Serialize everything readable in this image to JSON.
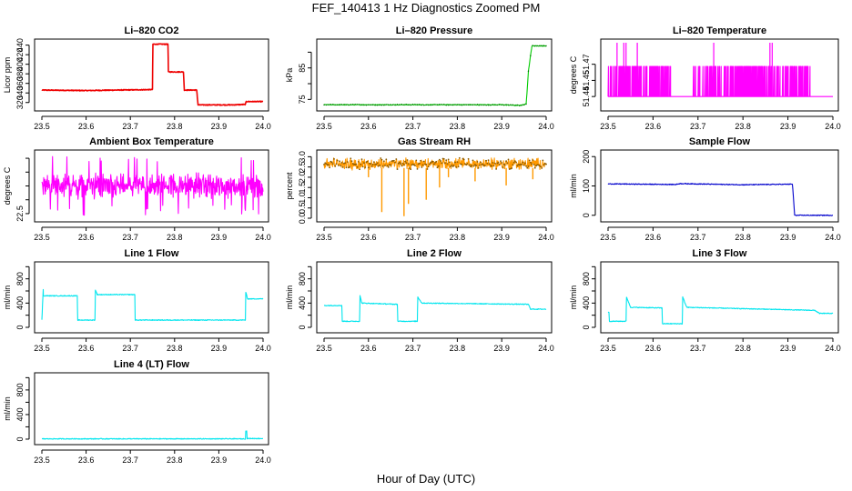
{
  "figure": {
    "title": "FEF_140413  1 Hz Diagnostics Zoomed PM",
    "xlabel": "Hour of Day (UTC)"
  },
  "chart_data": [
    {
      "id": "co2",
      "type": "line",
      "title": "Li–820 CO2",
      "ylabel": "Licor ppm",
      "color": "#ee0000",
      "xlim": [
        23.5,
        24.0
      ],
      "ylim": [
        310,
        445
      ],
      "xticks": [
        23.5,
        23.6,
        23.7,
        23.8,
        23.9,
        24.0
      ],
      "xtick_labels": [
        "23.5",
        "23.6",
        "23.7",
        "23.8",
        "23.9",
        "24.0"
      ],
      "yticks": [
        320,
        340,
        360,
        380,
        400,
        420,
        440
      ],
      "ytick_labels": [
        "320",
        "340",
        "360",
        "380",
        "400",
        "420",
        "440"
      ],
      "series": [
        {
          "name": "CO2",
          "x": [
            23.5,
            23.6,
            23.67,
            23.75,
            23.751,
            23.785,
            23.786,
            23.82,
            23.822,
            23.85,
            23.853,
            23.93,
            23.96,
            23.962,
            24.0
          ],
          "y": [
            346,
            345,
            346,
            347,
            442,
            442,
            384,
            384,
            346,
            346,
            315,
            315,
            316,
            322,
            322
          ]
        }
      ]
    },
    {
      "id": "pressure",
      "type": "line",
      "title": "Li–820 Pressure",
      "ylabel": "kPa",
      "color": "#00cc00",
      "xlim": [
        23.5,
        24.0
      ],
      "ylim": [
        72.5,
        93
      ],
      "xticks": [
        23.5,
        23.6,
        23.7,
        23.8,
        23.9,
        24.0
      ],
      "xtick_labels": [
        "23.5",
        "23.6",
        "23.7",
        "23.8",
        "23.9",
        "24.0"
      ],
      "yticks": [
        75,
        80,
        85,
        90
      ],
      "ytick_labels": [
        "75",
        "",
        "85",
        ""
      ],
      "series": [
        {
          "name": "Pressure",
          "x": [
            23.5,
            23.9,
            23.94,
            23.955,
            23.96,
            23.968,
            24.0
          ],
          "y": [
            73.3,
            73.3,
            73.1,
            73.5,
            84,
            92,
            92
          ]
        }
      ]
    },
    {
      "id": "li_temp",
      "type": "line",
      "title": "Li–820 Temperature",
      "ylabel": "degrees C",
      "color": "#ff00ff",
      "xlim": [
        23.5,
        24.0
      ],
      "ylim": [
        51.43,
        51.49
      ],
      "xticks": [
        23.5,
        23.6,
        23.7,
        23.8,
        23.9,
        24.0
      ],
      "xtick_labels": [
        "23.5",
        "23.6",
        "23.7",
        "23.8",
        "23.9",
        "24.0"
      ],
      "yticks": [
        51.44,
        51.455,
        51.47
      ],
      "ytick_labels": [
        "51.44",
        "51.45",
        "51.47"
      ],
      "series": [
        {
          "name": "Temperature",
          "low": 51.44,
          "high": 51.468,
          "spike": 51.49,
          "x_dense": [
            [
              23.5,
              23.64
            ],
            [
              23.69,
              23.95
            ]
          ],
          "x_spikes": [
            23.52,
            23.535,
            23.54,
            23.565,
            23.735,
            23.86,
            23.865
          ]
        }
      ]
    },
    {
      "id": "box_temp",
      "type": "line",
      "title": "Ambient Box Temperature",
      "ylabel": "degrees C",
      "color": "#ff00ff",
      "xlim": [
        23.5,
        24.0
      ],
      "ylim": [
        22.4,
        23.8
      ],
      "xticks": [
        23.5,
        23.6,
        23.7,
        23.8,
        23.9,
        24.0
      ],
      "xtick_labels": [
        "23.5",
        "23.6",
        "23.7",
        "23.8",
        "23.9",
        "24.0"
      ],
      "yticks": [
        22.5,
        22.8,
        23.1,
        23.4,
        23.7
      ],
      "ytick_labels": [
        "22.5",
        "",
        "",
        "",
        ""
      ],
      "series": [
        {
          "name": "Box Temperature",
          "mean": 23.1,
          "spread": 0.22,
          "min": 22.45,
          "max": 23.75
        }
      ]
    },
    {
      "id": "rh",
      "type": "line",
      "title": "Gas Stream RH",
      "ylabel": "percent",
      "color": "#ff9900",
      "xlim": [
        23.5,
        24.0
      ],
      "ylim": [
        0,
        3.15
      ],
      "xticks": [
        23.5,
        23.6,
        23.7,
        23.8,
        23.9,
        24.0
      ],
      "xtick_labels": [
        "23.5",
        "23.6",
        "23.7",
        "23.8",
        "23.9",
        "24.0"
      ],
      "yticks": [
        0.0,
        0.5,
        1.0,
        1.5,
        2.0,
        2.5,
        3.0
      ],
      "ytick_labels": [
        "0.0",
        "0.5",
        "1.0",
        "1.5",
        "2.0",
        "2.5",
        "3.0"
      ],
      "series": [
        {
          "name": "RH",
          "mean": 2.65,
          "spread": 0.25,
          "dips": [
            [
              23.63,
              0.3
            ],
            [
              23.68,
              0.1
            ],
            [
              23.69,
              0.7
            ],
            [
              23.73,
              0.9
            ],
            [
              23.76,
              1.5
            ],
            [
              23.78,
              2.0
            ],
            [
              23.6,
              2.0
            ],
            [
              23.84,
              1.8
            ],
            [
              23.91,
              1.6
            ],
            [
              23.97,
              1.9
            ]
          ]
        }
      ]
    },
    {
      "id": "sample_flow",
      "type": "line",
      "title": "Sample Flow",
      "ylabel": "ml/min",
      "color": "#0000cc",
      "xlim": [
        23.5,
        24.0
      ],
      "ylim": [
        -10,
        210
      ],
      "xticks": [
        23.5,
        23.6,
        23.7,
        23.8,
        23.9,
        24.0
      ],
      "xtick_labels": [
        "23.5",
        "23.6",
        "23.7",
        "23.8",
        "23.9",
        "24.0"
      ],
      "yticks": [
        0,
        100,
        200
      ],
      "ytick_labels": [
        "0",
        "100",
        "200"
      ],
      "series": [
        {
          "name": "Sample Flow",
          "x": [
            23.5,
            23.65,
            23.66,
            23.8,
            23.91,
            23.915,
            24.0
          ],
          "y": [
            107,
            105,
            108,
            104,
            106,
            0,
            0
          ]
        }
      ]
    },
    {
      "id": "line1",
      "type": "line",
      "title": "Line 1 Flow",
      "ylabel": "ml/min",
      "color": "#00e5ee",
      "xlim": [
        23.5,
        24.0
      ],
      "ylim": [
        -30,
        1020
      ],
      "xticks": [
        23.5,
        23.6,
        23.7,
        23.8,
        23.9,
        24.0
      ],
      "xtick_labels": [
        "23.5",
        "23.6",
        "23.7",
        "23.8",
        "23.9",
        "24.0"
      ],
      "yticks": [
        0,
        200,
        400,
        600,
        800,
        1000
      ],
      "ytick_labels": [
        "0",
        "",
        "400",
        "",
        "800",
        ""
      ],
      "series": [
        {
          "name": "Line 1",
          "x": [
            23.5,
            23.503,
            23.5035,
            23.58,
            23.581,
            23.62,
            23.621,
            23.625,
            23.71,
            23.711,
            23.96,
            23.961,
            23.965,
            24.0
          ],
          "y": [
            120,
            620,
            520,
            520,
            120,
            120,
            620,
            540,
            540,
            120,
            120,
            580,
            470,
            470
          ]
        }
      ]
    },
    {
      "id": "line2",
      "type": "line",
      "title": "Line 2 Flow",
      "ylabel": "ml/min",
      "color": "#00e5ee",
      "xlim": [
        23.5,
        24.0
      ],
      "ylim": [
        -30,
        1020
      ],
      "xticks": [
        23.5,
        23.6,
        23.7,
        23.8,
        23.9,
        24.0
      ],
      "xtick_labels": [
        "23.5",
        "23.6",
        "23.7",
        "23.8",
        "23.9",
        "24.0"
      ],
      "yticks": [
        0,
        200,
        400,
        600,
        800,
        1000
      ],
      "ytick_labels": [
        "0",
        "",
        "400",
        "",
        "800",
        ""
      ],
      "series": [
        {
          "name": "Line 2",
          "x": [
            23.5,
            23.54,
            23.541,
            23.58,
            23.581,
            23.585,
            23.665,
            23.666,
            23.71,
            23.711,
            23.72,
            23.96,
            23.965,
            24.0
          ],
          "y": [
            360,
            360,
            100,
            100,
            520,
            400,
            380,
            100,
            100,
            500,
            400,
            380,
            300,
            300
          ]
        }
      ]
    },
    {
      "id": "line3",
      "type": "line",
      "title": "Line 3 Flow",
      "ylabel": "ml/min",
      "color": "#00e5ee",
      "xlim": [
        23.5,
        24.0
      ],
      "ylim": [
        -30,
        1020
      ],
      "xticks": [
        23.5,
        23.6,
        23.7,
        23.8,
        23.9,
        24.0
      ],
      "xtick_labels": [
        "23.5",
        "23.6",
        "23.7",
        "23.8",
        "23.9",
        "24.0"
      ],
      "yticks": [
        0,
        200,
        400,
        600,
        800,
        1000
      ],
      "ytick_labels": [
        "0",
        "",
        "400",
        "",
        "800",
        ""
      ],
      "series": [
        {
          "name": "Line 3",
          "x": [
            23.5,
            23.502,
            23.503,
            23.54,
            23.541,
            23.55,
            23.62,
            23.621,
            23.665,
            23.666,
            23.675,
            23.96,
            23.97,
            24.0
          ],
          "y": [
            250,
            250,
            100,
            100,
            500,
            330,
            320,
            60,
            60,
            500,
            330,
            280,
            230,
            230
          ]
        }
      ]
    },
    {
      "id": "line4",
      "type": "line",
      "title": "Line 4 (LT) Flow",
      "ylabel": "ml/min",
      "color": "#00e5ee",
      "xlim": [
        23.5,
        24.0
      ],
      "ylim": [
        -30,
        1020
      ],
      "xticks": [
        23.5,
        23.6,
        23.7,
        23.8,
        23.9,
        24.0
      ],
      "xtick_labels": [
        "23.5",
        "23.6",
        "23.7",
        "23.8",
        "23.9",
        "24.0"
      ],
      "yticks": [
        0,
        200,
        400,
        600,
        800,
        1000
      ],
      "ytick_labels": [
        "0",
        "",
        "400",
        "",
        "800",
        ""
      ],
      "series": [
        {
          "name": "Line 4",
          "x": [
            23.5,
            23.96,
            23.961,
            23.963,
            23.964,
            24.0
          ],
          "y": [
            5,
            5,
            130,
            130,
            10,
            10
          ]
        }
      ]
    }
  ]
}
